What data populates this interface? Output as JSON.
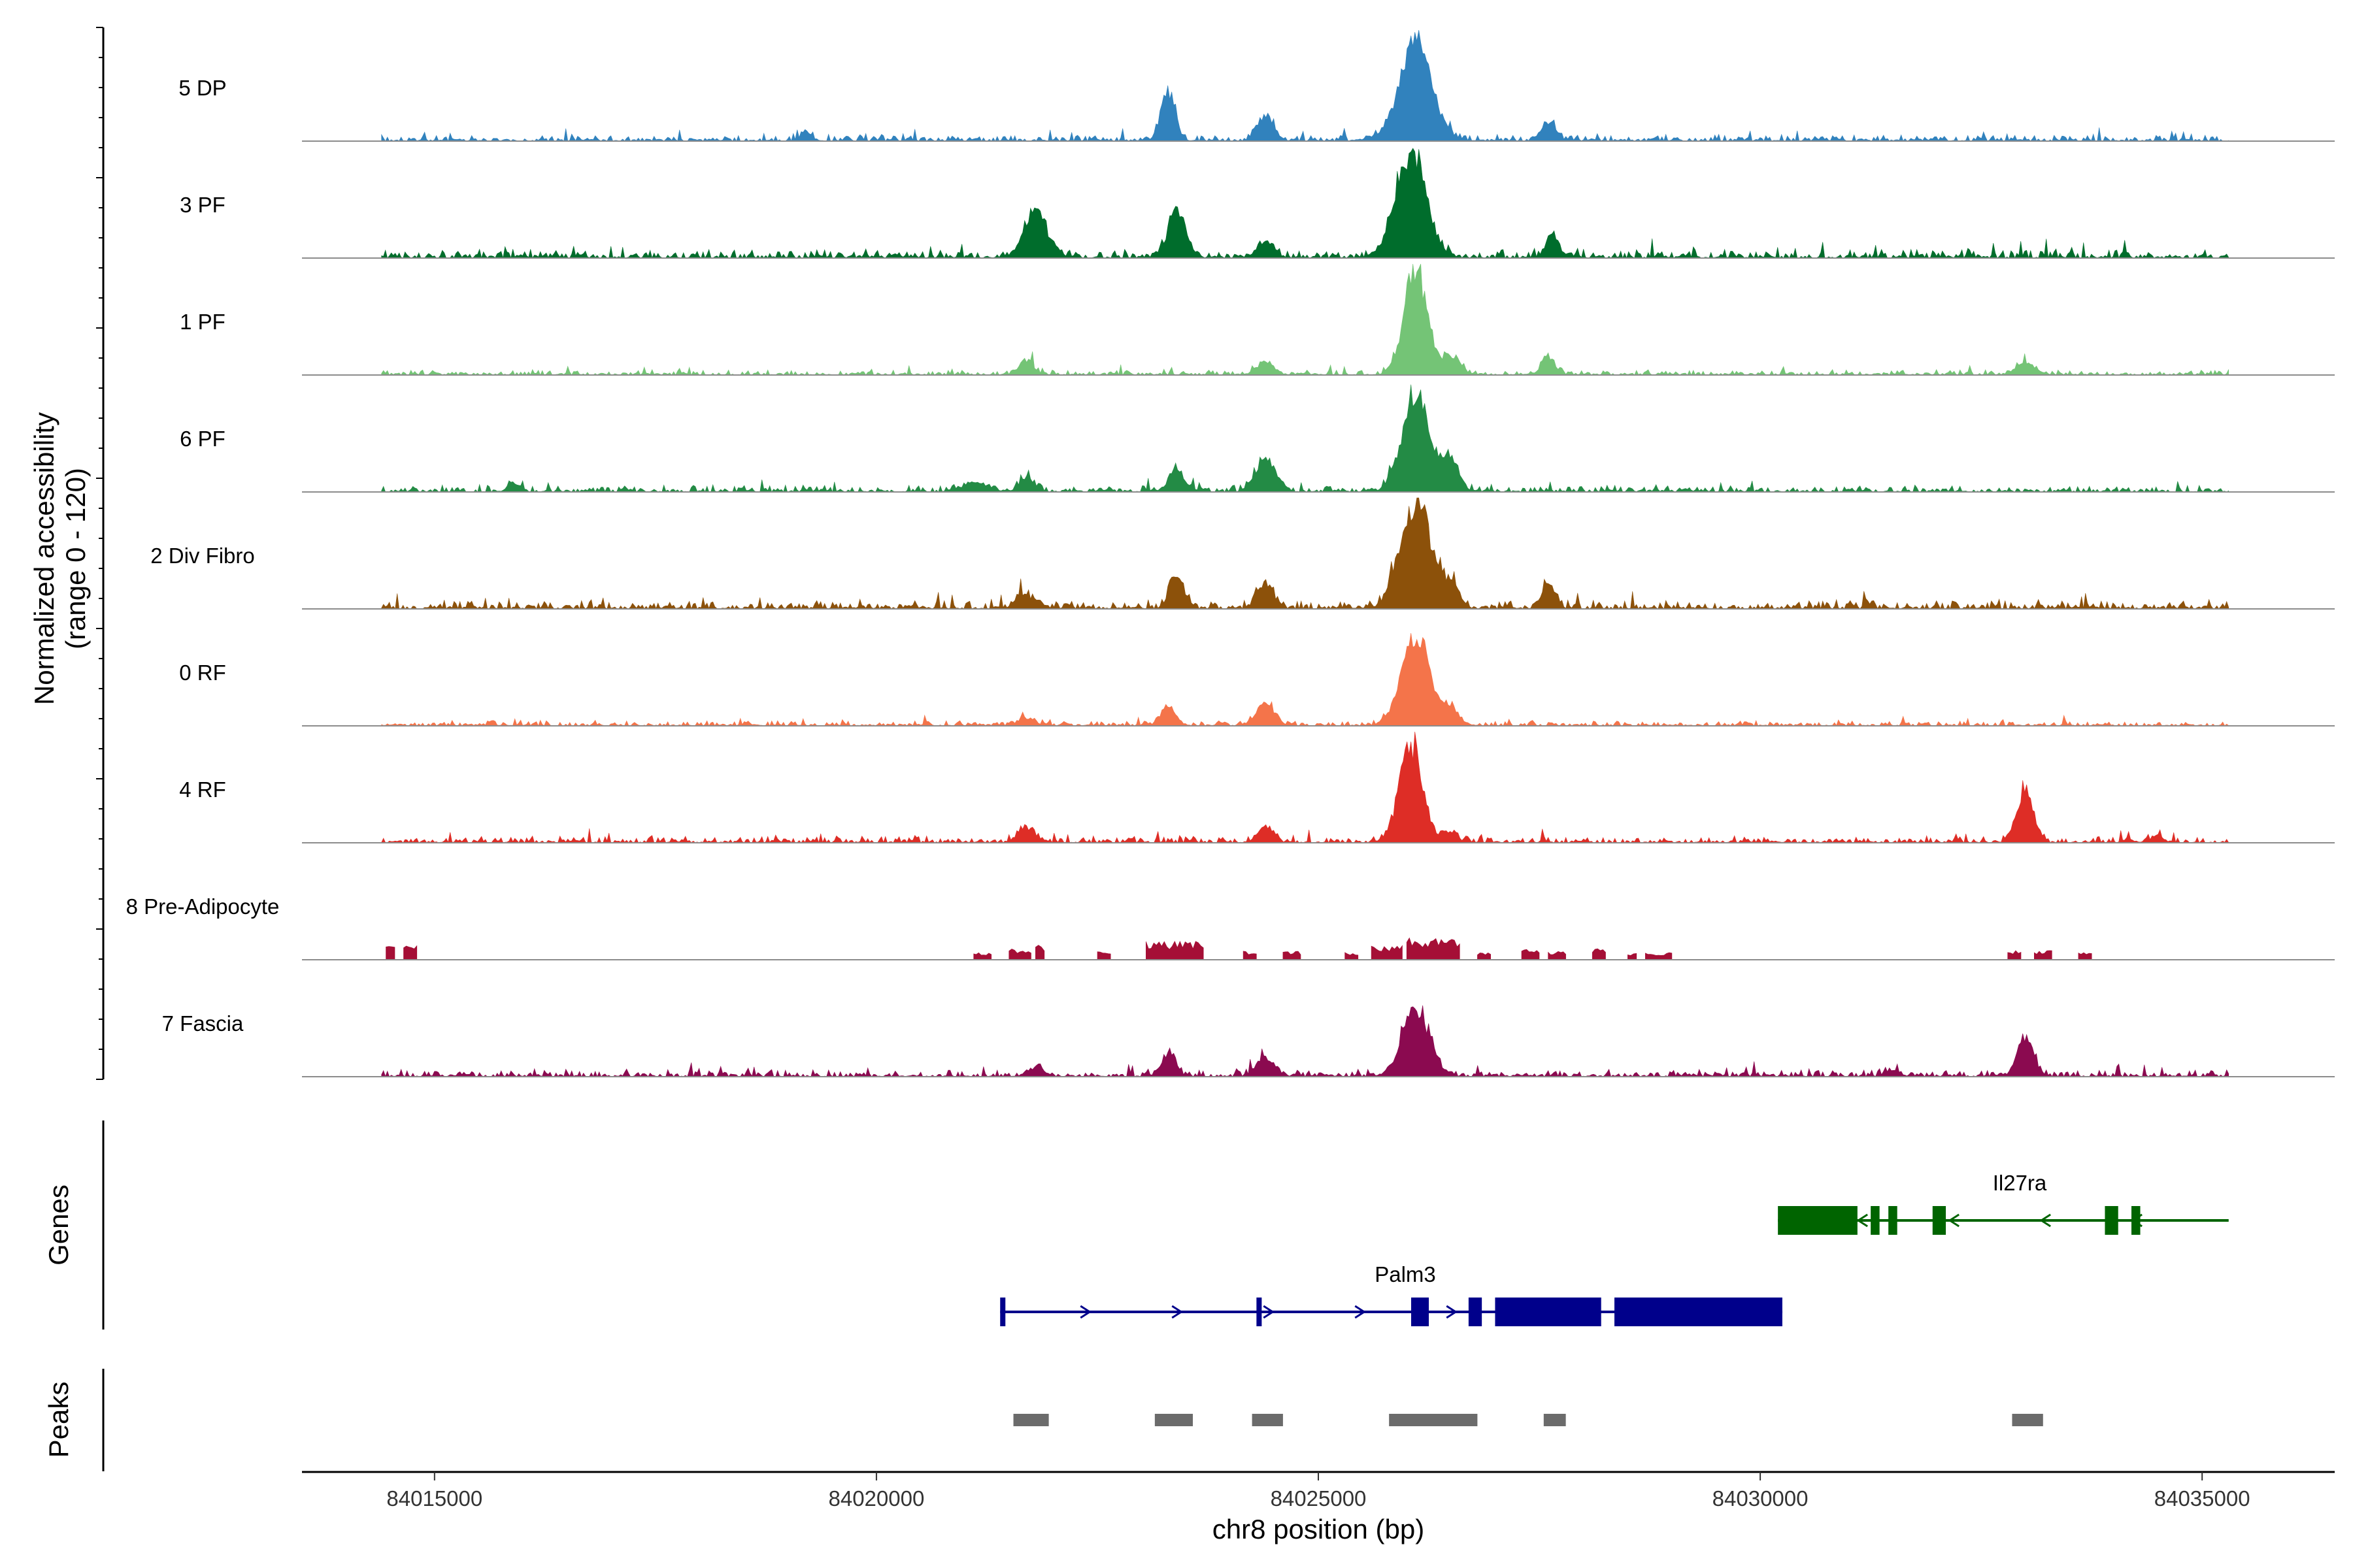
{
  "chart_data": {
    "type": "area",
    "title": "",
    "chromosome": "chr8",
    "xlabel": "chr8 position (bp)",
    "ylabel": "Normalized accessibility",
    "ylabel_range": "(range 0 - 120)",
    "yrange": [
      0,
      120
    ],
    "xlim": [
      84013500,
      84036500
    ],
    "xticks": [
      84015000,
      84020000,
      84025000,
      84030000,
      84035000
    ],
    "xtick_labels": [
      "84015000",
      "84020000",
      "84025000",
      "84030000",
      "84035000"
    ],
    "tracks": [
      {
        "name": "5 DP",
        "color": "#3182BD",
        "baseline": 4,
        "seed": 11,
        "peaks": [
          [
            84023300,
            55,
            80
          ],
          [
            84024400,
            28,
            90
          ],
          [
            84026100,
            110,
            180
          ],
          [
            84027600,
            20,
            80
          ],
          [
            84019200,
            10,
            60
          ]
        ]
      },
      {
        "name": "3 PF",
        "color": "#006D2C",
        "baseline": 5,
        "seed": 23,
        "peaks": [
          [
            84021800,
            50,
            130
          ],
          [
            84023400,
            50,
            100
          ],
          [
            84024400,
            18,
            90
          ],
          [
            84026050,
            118,
            170
          ],
          [
            84027650,
            26,
            70
          ]
        ]
      },
      {
        "name": "1 PF",
        "color": "#74C476",
        "baseline": 3,
        "seed": 37,
        "peaks": [
          [
            84021700,
            16,
            80
          ],
          [
            84024400,
            14,
            90
          ],
          [
            84026100,
            118,
            130
          ],
          [
            84026500,
            20,
            100
          ],
          [
            84027600,
            20,
            70
          ],
          [
            84033000,
            12,
            110
          ]
        ]
      },
      {
        "name": "6 PF",
        "color": "#238B45",
        "baseline": 4,
        "seed": 41,
        "peaks": [
          [
            84021100,
            10,
            120
          ],
          [
            84021700,
            16,
            80
          ],
          [
            84023400,
            24,
            80
          ],
          [
            84024400,
            35,
            110
          ],
          [
            84026100,
            112,
            150
          ],
          [
            84026500,
            38,
            90
          ],
          [
            84015900,
            8,
            70
          ]
        ]
      },
      {
        "name": "2 Div Fibro",
        "color": "#8C510A",
        "baseline": 5,
        "seed": 53,
        "peaks": [
          [
            84021700,
            14,
            110
          ],
          [
            84023400,
            34,
            80
          ],
          [
            84024400,
            26,
            90
          ],
          [
            84026100,
            120,
            170
          ],
          [
            84026500,
            26,
            90
          ],
          [
            84027600,
            28,
            70
          ]
        ]
      },
      {
        "name": "0 RF",
        "color": "#F4744A",
        "baseline": 3,
        "seed": 67,
        "peaks": [
          [
            84021700,
            8,
            90
          ],
          [
            84023300,
            22,
            80
          ],
          [
            84024400,
            24,
            100
          ],
          [
            84026100,
            100,
            160
          ],
          [
            84026500,
            20,
            80
          ]
        ]
      },
      {
        "name": "4 RF",
        "color": "#DE2D26",
        "baseline": 4,
        "seed": 71,
        "peaks": [
          [
            84021700,
            16,
            90
          ],
          [
            84024400,
            18,
            80
          ],
          [
            84026050,
            108,
            130
          ],
          [
            84026500,
            12,
            70
          ],
          [
            84033000,
            62,
            90
          ],
          [
            84034500,
            8,
            60
          ]
        ]
      },
      {
        "name": "8 Pre-Adipocyte",
        "color": "#A50F36",
        "baseline": 0,
        "seed": 83,
        "blocky": true,
        "segments": [
          [
            84014450,
            84014550,
            18
          ],
          [
            84014650,
            84014800,
            16
          ],
          [
            84021100,
            84021300,
            8
          ],
          [
            84021500,
            84021750,
            12
          ],
          [
            84021800,
            84021900,
            16
          ],
          [
            84022500,
            84022650,
            10
          ],
          [
            84023050,
            84023700,
            20
          ],
          [
            84024150,
            84024300,
            10
          ],
          [
            84024600,
            84024800,
            10
          ],
          [
            84025300,
            84025450,
            8
          ],
          [
            84025600,
            84025950,
            16
          ],
          [
            84026000,
            84026600,
            24
          ],
          [
            84026800,
            84026950,
            8
          ],
          [
            84027300,
            84027500,
            12
          ],
          [
            84027600,
            84027800,
            10
          ],
          [
            84028100,
            84028250,
            12
          ],
          [
            84028500,
            84028600,
            8
          ],
          [
            84028700,
            84029000,
            8
          ],
          [
            84032800,
            84032950,
            10
          ],
          [
            84033100,
            84033300,
            10
          ],
          [
            84033600,
            84033750,
            8
          ]
        ]
      },
      {
        "name": "7 Fascia",
        "color": "#8B0A50",
        "baseline": 4,
        "seed": 97,
        "peaks": [
          [
            84021800,
            10,
            90
          ],
          [
            84023300,
            24,
            80
          ],
          [
            84024400,
            22,
            90
          ],
          [
            84026100,
            78,
            150
          ],
          [
            84033000,
            42,
            90
          ],
          [
            84031500,
            6,
            80
          ]
        ]
      }
    ],
    "genes": [
      {
        "name": "Il27ra",
        "strand": "-",
        "color": "#006400",
        "start": 84030200,
        "end": 84035300,
        "exons": [
          [
            84030200,
            84031100
          ],
          [
            84031250,
            84031350
          ],
          [
            84031450,
            84031550
          ],
          [
            84031950,
            84032100
          ],
          [
            84033900,
            84034050
          ],
          [
            84034200,
            84034300
          ]
        ]
      },
      {
        "name": "Palm3",
        "strand": "+",
        "color": "#00008B",
        "start": 84021400,
        "end": 84030250,
        "exons": [
          [
            84021400,
            84021450
          ],
          [
            84024300,
            84024350
          ],
          [
            84026050,
            84026250
          ],
          [
            84026700,
            84026850
          ],
          [
            84027000,
            84028200
          ],
          [
            84028350,
            84030250
          ]
        ]
      }
    ],
    "peaks_track": {
      "color": "#6B6B6B",
      "regions": [
        [
          84021550,
          84021950
        ],
        [
          84023150,
          84023580
        ],
        [
          84024250,
          84024600
        ],
        [
          84025800,
          84026800
        ],
        [
          84027550,
          84027800
        ],
        [
          84032850,
          84033200
        ]
      ]
    },
    "panel_labels": {
      "genes": "Genes",
      "peaks": "Peaks"
    }
  }
}
